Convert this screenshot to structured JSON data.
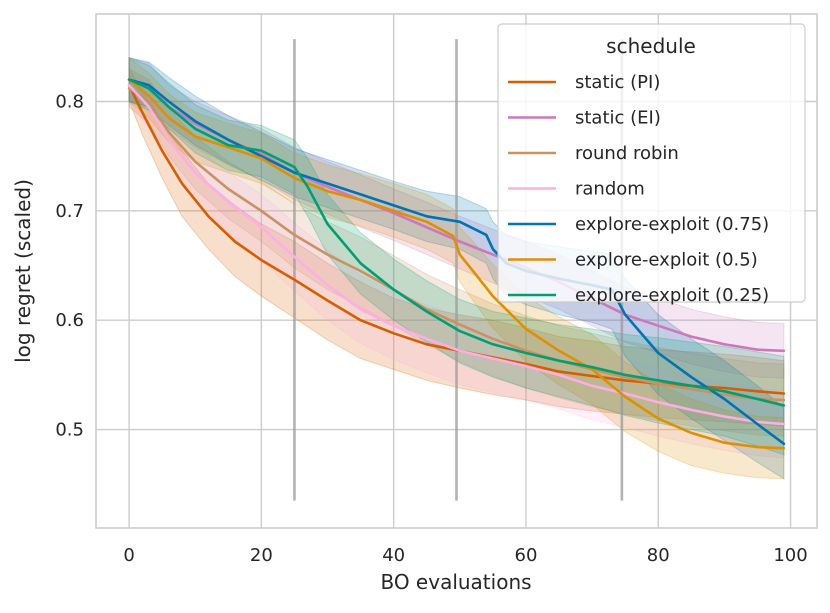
{
  "chart_data": {
    "type": "line",
    "title": "",
    "xlabel": "BO evaluations",
    "ylabel": "log regret (scaled)",
    "xlim": [
      -5,
      104
    ],
    "ylim": [
      0.41,
      0.88
    ],
    "xticks": [
      0,
      20,
      40,
      60,
      80,
      100
    ],
    "yticks": [
      0.5,
      0.6,
      0.7,
      0.8
    ],
    "xtick_labels": [
      "0",
      "20",
      "40",
      "60",
      "80",
      "100"
    ],
    "ytick_labels": [
      "0.5",
      "0.6",
      "0.7",
      "0.8"
    ],
    "grid": true,
    "vertical_markers": [
      {
        "x": 25,
        "y_range": [
          0.435,
          0.857
        ]
      },
      {
        "x": 49.5,
        "y_range": [
          0.435,
          0.857
        ]
      },
      {
        "x": 74.5,
        "y_range": [
          0.435,
          0.857
        ]
      }
    ],
    "legend": {
      "title": "schedule",
      "position": "top-right"
    },
    "series": [
      {
        "name": "static (PI)",
        "color": "#d55e00",
        "x": [
          0,
          2,
          5,
          8,
          12,
          16,
          20,
          25,
          30,
          35,
          40,
          45,
          50,
          55,
          60,
          65,
          70,
          75,
          80,
          85,
          90,
          95,
          99
        ],
        "y": [
          0.815,
          0.79,
          0.755,
          0.725,
          0.695,
          0.672,
          0.655,
          0.637,
          0.618,
          0.6,
          0.588,
          0.578,
          0.572,
          0.566,
          0.56,
          0.553,
          0.549,
          0.545,
          0.542,
          0.54,
          0.538,
          0.535,
          0.533
        ],
        "lower": [
          0.8,
          0.77,
          0.73,
          0.695,
          0.665,
          0.64,
          0.622,
          0.602,
          0.582,
          0.565,
          0.555,
          0.545,
          0.538,
          0.532,
          0.527,
          0.521,
          0.517,
          0.514,
          0.511,
          0.509,
          0.507,
          0.505,
          0.503
        ],
        "upper": [
          0.83,
          0.81,
          0.78,
          0.755,
          0.725,
          0.705,
          0.688,
          0.672,
          0.652,
          0.635,
          0.62,
          0.611,
          0.605,
          0.6,
          0.593,
          0.585,
          0.581,
          0.576,
          0.573,
          0.571,
          0.569,
          0.566,
          0.563
        ]
      },
      {
        "name": "static (EI)",
        "color": "#cc78bc",
        "x": [
          0,
          3,
          6,
          10,
          15,
          20,
          25,
          30,
          35,
          40,
          45,
          50,
          55,
          60,
          65,
          70,
          75,
          80,
          85,
          90,
          95,
          99
        ],
        "y": [
          0.82,
          0.815,
          0.795,
          0.78,
          0.765,
          0.752,
          0.735,
          0.722,
          0.71,
          0.698,
          0.685,
          0.672,
          0.66,
          0.648,
          0.635,
          0.62,
          0.605,
          0.595,
          0.585,
          0.578,
          0.573,
          0.572
        ],
        "lower": [
          0.8,
          0.795,
          0.775,
          0.758,
          0.742,
          0.728,
          0.71,
          0.697,
          0.685,
          0.673,
          0.66,
          0.647,
          0.634,
          0.622,
          0.61,
          0.595,
          0.58,
          0.57,
          0.56,
          0.553,
          0.548,
          0.547
        ],
        "upper": [
          0.84,
          0.835,
          0.815,
          0.8,
          0.787,
          0.775,
          0.758,
          0.745,
          0.733,
          0.72,
          0.708,
          0.695,
          0.683,
          0.672,
          0.66,
          0.645,
          0.63,
          0.62,
          0.61,
          0.603,
          0.598,
          0.597
        ]
      },
      {
        "name": "round robin",
        "color": "#ca9161",
        "x": [
          0,
          3,
          6,
          10,
          15,
          20,
          25,
          30,
          35,
          40,
          45,
          50,
          55,
          60,
          65,
          70,
          75,
          80,
          85,
          90,
          95,
          99
        ],
        "y": [
          0.812,
          0.8,
          0.772,
          0.745,
          0.72,
          0.7,
          0.678,
          0.66,
          0.645,
          0.628,
          0.61,
          0.596,
          0.583,
          0.572,
          0.563,
          0.555,
          0.548,
          0.542,
          0.537,
          0.532,
          0.528,
          0.527
        ],
        "lower": [
          0.795,
          0.78,
          0.75,
          0.72,
          0.693,
          0.672,
          0.648,
          0.628,
          0.612,
          0.595,
          0.578,
          0.562,
          0.549,
          0.538,
          0.529,
          0.521,
          0.514,
          0.508,
          0.503,
          0.499,
          0.495,
          0.494
        ],
        "upper": [
          0.83,
          0.82,
          0.793,
          0.768,
          0.745,
          0.727,
          0.706,
          0.69,
          0.676,
          0.659,
          0.642,
          0.628,
          0.615,
          0.604,
          0.595,
          0.588,
          0.581,
          0.575,
          0.57,
          0.565,
          0.561,
          0.56
        ]
      },
      {
        "name": "random",
        "color": "#fbafe4",
        "x": [
          0,
          3,
          6,
          10,
          15,
          20,
          25,
          30,
          35,
          40,
          45,
          50,
          55,
          60,
          65,
          70,
          75,
          80,
          85,
          90,
          95,
          99
        ],
        "y": [
          0.815,
          0.795,
          0.765,
          0.735,
          0.708,
          0.685,
          0.658,
          0.632,
          0.61,
          0.595,
          0.583,
          0.572,
          0.565,
          0.558,
          0.55,
          0.54,
          0.533,
          0.525,
          0.518,
          0.512,
          0.507,
          0.505
        ],
        "lower": [
          0.8,
          0.775,
          0.742,
          0.71,
          0.68,
          0.655,
          0.627,
          0.6,
          0.579,
          0.564,
          0.552,
          0.541,
          0.534,
          0.527,
          0.519,
          0.509,
          0.502,
          0.494,
          0.487,
          0.481,
          0.476,
          0.474
        ],
        "upper": [
          0.83,
          0.815,
          0.788,
          0.76,
          0.735,
          0.715,
          0.689,
          0.664,
          0.641,
          0.626,
          0.614,
          0.603,
          0.596,
          0.589,
          0.581,
          0.571,
          0.564,
          0.556,
          0.549,
          0.543,
          0.538,
          0.536
        ]
      },
      {
        "name": "explore-exploit (0.75)",
        "color": "#0173b2",
        "x": [
          0,
          3,
          6,
          10,
          15,
          20,
          25,
          30,
          35,
          40,
          45,
          50,
          54,
          55,
          57,
          60,
          65,
          70,
          73,
          75,
          80,
          85,
          90,
          95,
          99
        ],
        "y": [
          0.82,
          0.815,
          0.8,
          0.782,
          0.765,
          0.75,
          0.735,
          0.725,
          0.715,
          0.705,
          0.695,
          0.69,
          0.678,
          0.665,
          0.652,
          0.645,
          0.638,
          0.632,
          0.628,
          0.605,
          0.57,
          0.548,
          0.528,
          0.505,
          0.487
        ],
        "lower": [
          0.8,
          0.795,
          0.778,
          0.76,
          0.743,
          0.728,
          0.713,
          0.703,
          0.693,
          0.683,
          0.672,
          0.665,
          0.652,
          0.638,
          0.623,
          0.614,
          0.605,
          0.598,
          0.592,
          0.567,
          0.532,
          0.51,
          0.49,
          0.47,
          0.455
        ],
        "upper": [
          0.84,
          0.836,
          0.822,
          0.805,
          0.787,
          0.772,
          0.757,
          0.747,
          0.737,
          0.727,
          0.718,
          0.713,
          0.702,
          0.69,
          0.678,
          0.672,
          0.667,
          0.663,
          0.66,
          0.638,
          0.605,
          0.583,
          0.563,
          0.54,
          0.52
        ]
      },
      {
        "name": "explore-exploit (0.5)",
        "color": "#de8f05",
        "x": [
          0,
          3,
          6,
          10,
          15,
          20,
          25,
          30,
          35,
          40,
          45,
          49,
          50,
          52,
          55,
          60,
          65,
          70,
          75,
          80,
          85,
          90,
          95,
          99
        ],
        "y": [
          0.82,
          0.805,
          0.785,
          0.768,
          0.758,
          0.748,
          0.73,
          0.718,
          0.71,
          0.7,
          0.69,
          0.677,
          0.66,
          0.645,
          0.622,
          0.592,
          0.572,
          0.555,
          0.53,
          0.51,
          0.497,
          0.488,
          0.484,
          0.483
        ],
        "lower": [
          0.8,
          0.785,
          0.763,
          0.745,
          0.735,
          0.725,
          0.707,
          0.694,
          0.686,
          0.676,
          0.665,
          0.652,
          0.635,
          0.618,
          0.593,
          0.562,
          0.541,
          0.523,
          0.498,
          0.48,
          0.467,
          0.46,
          0.456,
          0.455
        ],
        "upper": [
          0.84,
          0.826,
          0.807,
          0.79,
          0.78,
          0.771,
          0.753,
          0.742,
          0.734,
          0.725,
          0.715,
          0.702,
          0.685,
          0.672,
          0.651,
          0.622,
          0.603,
          0.587,
          0.562,
          0.542,
          0.528,
          0.518,
          0.512,
          0.511
        ]
      },
      {
        "name": "explore-exploit (0.25)",
        "color": "#029e73",
        "x": [
          0,
          3,
          6,
          10,
          15,
          20,
          25,
          27,
          30,
          35,
          40,
          45,
          50,
          55,
          60,
          65,
          70,
          75,
          80,
          85,
          90,
          95,
          99
        ],
        "y": [
          0.82,
          0.812,
          0.795,
          0.775,
          0.76,
          0.755,
          0.74,
          0.722,
          0.688,
          0.652,
          0.628,
          0.608,
          0.59,
          0.578,
          0.57,
          0.563,
          0.557,
          0.55,
          0.545,
          0.54,
          0.535,
          0.528,
          0.522
        ],
        "lower": [
          0.8,
          0.792,
          0.775,
          0.753,
          0.737,
          0.731,
          0.715,
          0.695,
          0.66,
          0.624,
          0.6,
          0.58,
          0.561,
          0.548,
          0.538,
          0.53,
          0.522,
          0.513,
          0.506,
          0.5,
          0.494,
          0.485,
          0.477
        ],
        "upper": [
          0.84,
          0.833,
          0.817,
          0.797,
          0.783,
          0.778,
          0.765,
          0.748,
          0.715,
          0.68,
          0.656,
          0.636,
          0.619,
          0.608,
          0.602,
          0.596,
          0.592,
          0.587,
          0.584,
          0.58,
          0.576,
          0.571,
          0.567
        ]
      }
    ]
  }
}
